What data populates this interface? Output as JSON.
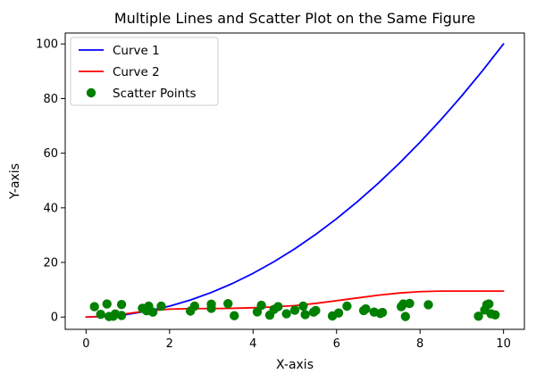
{
  "chart_data": {
    "type": "line",
    "title": "Multiple Lines and Scatter Plot on the Same Figure",
    "xlabel": "X-axis",
    "ylabel": "Y-axis",
    "xlim": [
      -0.5,
      10.5
    ],
    "ylim": [
      -4.5,
      104
    ],
    "xticks": [
      0,
      2,
      4,
      6,
      8,
      10
    ],
    "yticks": [
      0,
      20,
      40,
      60,
      80,
      100
    ],
    "grid": false,
    "legend_position": "top-left",
    "series": [
      {
        "name": "Curve 1",
        "type": "line",
        "color": "#0000ff",
        "x": [
          0,
          0.5,
          1,
          1.5,
          2,
          2.5,
          3,
          3.5,
          4,
          4.5,
          5,
          5.5,
          6,
          6.5,
          7,
          7.5,
          8,
          8.5,
          9,
          9.5,
          10
        ],
        "y": [
          0,
          0.25,
          1,
          2.25,
          4,
          6.25,
          9,
          12.25,
          16,
          20.25,
          25,
          30.25,
          36,
          42.25,
          49,
          56.25,
          64,
          72.25,
          81,
          90.25,
          100
        ]
      },
      {
        "name": "Curve 2",
        "type": "line",
        "color": "#ff0000",
        "x": [
          0,
          0.5,
          1,
          1.5,
          2,
          2.5,
          3,
          3.5,
          4,
          4.5,
          5,
          5.5,
          6,
          6.5,
          7,
          7.5,
          8,
          8.5,
          9,
          9.5,
          10
        ],
        "y": [
          0,
          0.4,
          1.3,
          2.3,
          2.9,
          3.1,
          3.1,
          3.2,
          3.4,
          3.7,
          4.2,
          5.0,
          6.0,
          7.0,
          8.0,
          8.8,
          9.3,
          9.5,
          9.5,
          9.5,
          9.5
        ]
      },
      {
        "name": "Scatter Points",
        "type": "scatter",
        "color": "#008000",
        "x": [
          0.2,
          0.35,
          0.5,
          0.55,
          0.65,
          0.7,
          0.85,
          0.85,
          1.35,
          1.45,
          1.5,
          1.6,
          1.8,
          2.5,
          2.6,
          3.0,
          3.0,
          3.4,
          3.55,
          4.1,
          4.2,
          4.4,
          4.5,
          4.6,
          4.8,
          5.0,
          5.2,
          5.25,
          5.45,
          5.5,
          5.9,
          6.05,
          6.25,
          6.65,
          6.7,
          6.9,
          7.05,
          7.1,
          7.55,
          7.6,
          7.65,
          7.75,
          8.2,
          9.4,
          9.55,
          9.6,
          9.65,
          9.7,
          9.8
        ],
        "y": [
          3.8,
          1.0,
          4.8,
          0.2,
          0.3,
          1.1,
          0.6,
          4.6,
          3.2,
          2.3,
          4.0,
          1.8,
          4.0,
          2.2,
          4.0,
          4.7,
          3.2,
          4.9,
          0.5,
          1.9,
          4.3,
          0.7,
          2.8,
          3.8,
          1.2,
          2.5,
          4.0,
          0.9,
          1.8,
          2.4,
          0.4,
          1.5,
          4.0,
          2.4,
          3.0,
          1.8,
          1.3,
          1.7,
          3.8,
          4.8,
          0.2,
          5.0,
          4.5,
          0.3,
          2.6,
          4.5,
          4.8,
          1.2,
          0.8
        ]
      }
    ]
  }
}
